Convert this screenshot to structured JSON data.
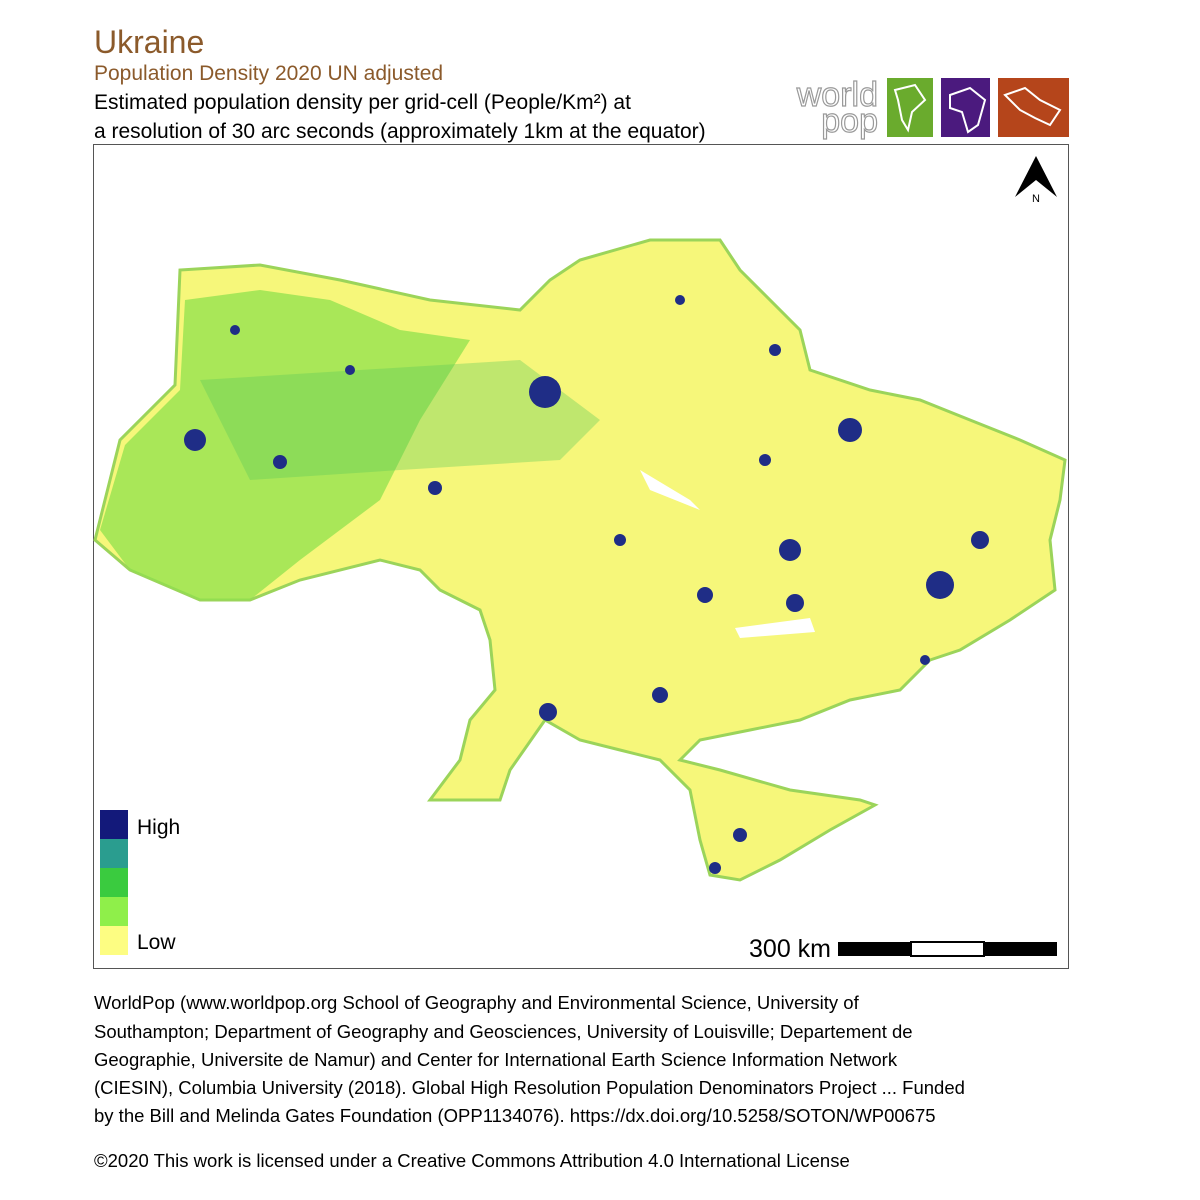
{
  "title": "Ukraine",
  "subtitle": "Population Density 2020 UN adjusted",
  "description": [
    "Estimated population density per grid-cell (People/Km²) at",
    "a resolution of 30 arc seconds (approximately 1km at the equator)"
  ],
  "logo": {
    "line1": "world",
    "line2": "pop"
  },
  "north_label": "N",
  "legend": {
    "high": "High",
    "low": "Low"
  },
  "scale_label": "300 km",
  "citation": [
    "WorldPop (www.worldpop.org School of Geography and Environmental Science, University of",
    "Southampton; Department of Geography and Geosciences, University of Louisville; Departement de",
    "Geographie, Universite de Namur) and Center for International Earth Science Information Network",
    "(CIESIN), Columbia University (2018). Global High Resolution Population Denominators Project ... Funded",
    "by the Bill and Melinda Gates Foundation (OPP1134076). https://dx.doi.org/10.5258/SOTON/WP00675"
  ],
  "license": "©2020 This work is licensed under a Creative Commons Attribution 4.0 International License"
}
